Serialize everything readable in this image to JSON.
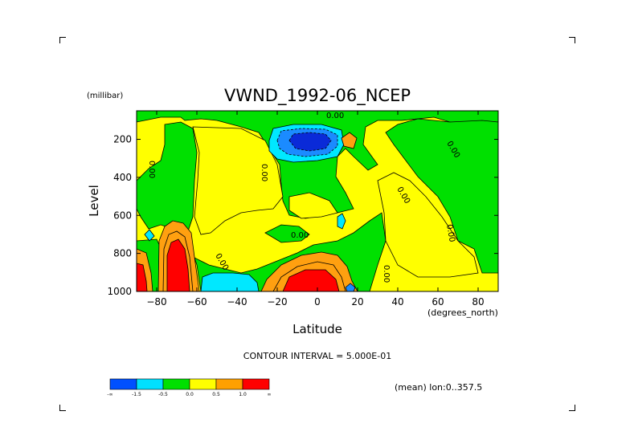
{
  "chart_data": {
    "type": "contour",
    "title": "VWND_1992-06_NCEP",
    "xlabel": "Latitude",
    "ylabel": "Level",
    "x_units": "(degrees_north)",
    "y_units": "(millibar)",
    "xlim": [
      -90,
      90
    ],
    "ylim": [
      1000,
      50
    ],
    "xticks": [
      -80,
      -60,
      -40,
      -20,
      0,
      20,
      40,
      60,
      80
    ],
    "xtick_labels": [
      "−80",
      "−60",
      "−40",
      "−20",
      "0",
      "20",
      "40",
      "60",
      "80"
    ],
    "yticks": [
      200,
      400,
      600,
      800,
      1000
    ],
    "ytick_labels": [
      "200",
      "400",
      "600",
      "800",
      "1000"
    ],
    "contour_labels": [
      "0.00",
      "0.00",
      "0.00",
      "0.00",
      "0.00",
      "0.00",
      "0.00",
      "0.00",
      "0.00"
    ],
    "contour_interval_text": "CONTOUR INTERVAL = 5.000E-01",
    "footer_text": "(mean) lon:0..357.5",
    "colorbar": {
      "colors": [
        "#0050ff",
        "#00e0ff",
        "#00e000",
        "#ffff00",
        "#ffa000",
        "#ff0000"
      ],
      "labels": [
        "-∞",
        "-1.5",
        "-0.5",
        "0.0",
        "0.5",
        "1.0",
        "∞"
      ]
    },
    "colors": {
      "deep_blue": "#0a2ad8",
      "blue": "#1b8bff",
      "cyan": "#00e8ff",
      "green": "#00e000",
      "yellow": "#ffff00",
      "orange": "#ffa010",
      "red": "#ff0000"
    }
  }
}
